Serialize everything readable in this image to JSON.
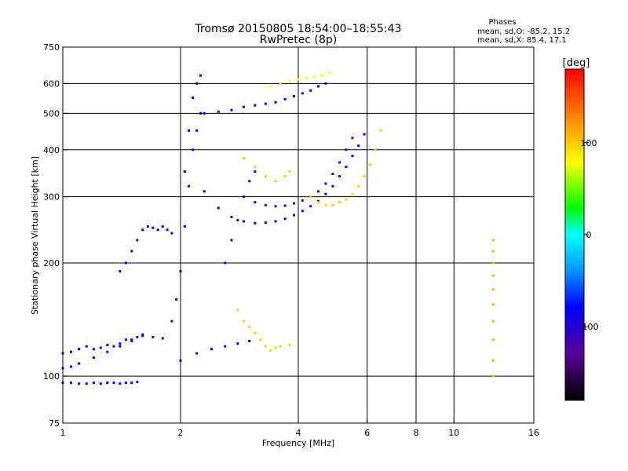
{
  "chart_data": {
    "type": "scatter",
    "title": "Tromsø 20150805 18:54:00–18:55:43",
    "subtitle": "RwPretec (8p)",
    "xlabel": "Frequency [MHz]",
    "ylabel": "Stationary phase Virtual Height [km]",
    "x_scale": "log",
    "y_scale": "log",
    "xlim": [
      1,
      16
    ],
    "ylim": [
      75,
      750
    ],
    "x_ticks": [
      1,
      2,
      4,
      6,
      8,
      10,
      16
    ],
    "x_gridlines": [
      2,
      4,
      6,
      8,
      10
    ],
    "y_ticks": [
      75,
      100,
      200,
      300,
      400,
      500,
      600,
      750
    ],
    "y_gridlines": [
      100,
      200,
      300,
      400,
      500,
      600
    ],
    "grid": true,
    "stats": {
      "heading": "Phases",
      "line_o": "mean, sd,O: -85.2, 15.2",
      "line_x": "mean, sd,X:  85.4, 17.1"
    },
    "colorbar": {
      "label": "[deg]",
      "ticks": [
        100,
        0,
        -100
      ],
      "range": [
        -180,
        180
      ],
      "placement": "right"
    },
    "traces": [
      {
        "phase": -100,
        "points": [
          [
            1.0,
            115
          ],
          [
            1.05,
            116
          ],
          [
            1.1,
            118
          ],
          [
            1.15,
            120
          ],
          [
            1.2,
            118
          ],
          [
            1.25,
            119
          ],
          [
            1.3,
            121
          ],
          [
            1.35,
            120
          ],
          [
            1.4,
            122
          ],
          [
            1.45,
            125
          ],
          [
            1.5,
            124
          ],
          [
            1.55,
            127
          ],
          [
            1.6,
            129
          ]
        ]
      },
      {
        "phase": -100,
        "points": [
          [
            1.0,
            96
          ],
          [
            1.05,
            96
          ],
          [
            1.1,
            95.5
          ],
          [
            1.15,
            95.5
          ],
          [
            1.2,
            96
          ],
          [
            1.25,
            95.5
          ],
          [
            1.3,
            96
          ],
          [
            1.35,
            96
          ],
          [
            1.4,
            95.5
          ],
          [
            1.45,
            96
          ],
          [
            1.5,
            96
          ],
          [
            1.55,
            96.5
          ]
        ]
      },
      {
        "phase": -100,
        "points": [
          [
            1.0,
            105
          ],
          [
            1.05,
            106
          ],
          [
            1.1,
            108
          ],
          [
            1.2,
            112
          ],
          [
            1.3,
            116
          ],
          [
            1.4,
            120
          ],
          [
            1.5,
            125
          ],
          [
            1.6,
            128
          ],
          [
            1.7,
            127
          ],
          [
            1.8,
            126
          ]
        ]
      },
      {
        "phase": -100,
        "points": [
          [
            1.4,
            190
          ],
          [
            1.45,
            200
          ],
          [
            1.5,
            215
          ],
          [
            1.55,
            230
          ],
          [
            1.6,
            245
          ],
          [
            1.65,
            250
          ],
          [
            1.7,
            248
          ],
          [
            1.75,
            245
          ],
          [
            1.8,
            250
          ],
          [
            1.85,
            245
          ],
          [
            1.9,
            240
          ]
        ]
      },
      {
        "phase": -100,
        "points": [
          [
            1.9,
            140
          ],
          [
            1.95,
            160
          ],
          [
            2.0,
            190
          ],
          [
            2.05,
            250
          ],
          [
            2.1,
            320
          ],
          [
            2.15,
            400
          ],
          [
            2.2,
            450
          ],
          [
            2.25,
            500
          ]
        ]
      },
      {
        "phase": -100,
        "points": [
          [
            2.05,
            350
          ],
          [
            2.1,
            450
          ],
          [
            2.15,
            550
          ],
          [
            2.2,
            600
          ],
          [
            2.25,
            630
          ]
        ]
      },
      {
        "phase": -100,
        "points": [
          [
            2.3,
            500
          ],
          [
            2.5,
            505
          ],
          [
            2.7,
            510
          ],
          [
            2.9,
            520
          ],
          [
            3.1,
            525
          ],
          [
            3.3,
            530
          ],
          [
            3.5,
            535
          ],
          [
            3.7,
            545
          ],
          [
            3.9,
            555
          ],
          [
            4.1,
            565
          ],
          [
            4.3,
            575
          ],
          [
            4.5,
            590
          ],
          [
            4.7,
            600
          ]
        ]
      },
      {
        "phase": -100,
        "points": [
          [
            2.3,
            310
          ],
          [
            2.5,
            280
          ],
          [
            2.7,
            265
          ],
          [
            2.9,
            258
          ],
          [
            3.1,
            255
          ],
          [
            3.3,
            256
          ],
          [
            3.5,
            258
          ],
          [
            3.7,
            262
          ],
          [
            3.9,
            268
          ],
          [
            4.1,
            275
          ],
          [
            4.3,
            283
          ],
          [
            4.5,
            292
          ],
          [
            4.7,
            305
          ],
          [
            4.9,
            320
          ],
          [
            5.1,
            340
          ],
          [
            5.3,
            360
          ],
          [
            5.5,
            385
          ],
          [
            5.7,
            410
          ],
          [
            5.9,
            440
          ]
        ]
      },
      {
        "phase": -120,
        "points": [
          [
            2.9,
            300
          ],
          [
            3.1,
            290
          ],
          [
            3.3,
            285
          ],
          [
            3.5,
            283
          ],
          [
            3.7,
            284
          ],
          [
            3.9,
            288
          ],
          [
            4.1,
            293
          ],
          [
            4.3,
            300
          ],
          [
            4.5,
            310
          ],
          [
            4.7,
            325
          ],
          [
            4.9,
            345
          ],
          [
            5.1,
            370
          ],
          [
            5.3,
            400
          ],
          [
            5.5,
            430
          ]
        ]
      },
      {
        "phase": -100,
        "points": [
          [
            2.6,
            200
          ],
          [
            2.7,
            230
          ],
          [
            2.8,
            260
          ],
          [
            2.9,
            300
          ],
          [
            3.0,
            330
          ],
          [
            3.1,
            350
          ]
        ]
      },
      {
        "phase": -100,
        "points": [
          [
            2.0,
            110
          ],
          [
            2.2,
            115
          ],
          [
            2.4,
            118
          ],
          [
            2.6,
            120
          ],
          [
            2.8,
            122
          ],
          [
            3.0,
            124
          ]
        ]
      },
      {
        "phase": 100,
        "points": [
          [
            2.9,
            380
          ],
          [
            3.1,
            360
          ],
          [
            3.3,
            340
          ],
          [
            3.5,
            330
          ],
          [
            3.7,
            340
          ],
          [
            3.8,
            350
          ]
        ]
      },
      {
        "phase": 100,
        "points": [
          [
            4.3,
            300
          ],
          [
            4.5,
            290
          ],
          [
            4.7,
            285
          ],
          [
            4.9,
            285
          ],
          [
            5.1,
            290
          ],
          [
            5.3,
            295
          ],
          [
            5.5,
            305
          ],
          [
            5.7,
            320
          ],
          [
            5.9,
            340
          ],
          [
            6.1,
            365
          ],
          [
            6.3,
            400
          ],
          [
            6.5,
            450
          ]
        ]
      },
      {
        "phase": 100,
        "points": [
          [
            2.8,
            150
          ],
          [
            2.9,
            140
          ],
          [
            3.0,
            135
          ],
          [
            3.1,
            130
          ],
          [
            3.2,
            125
          ],
          [
            3.3,
            120
          ],
          [
            3.4,
            117
          ],
          [
            3.5,
            119
          ],
          [
            3.6,
            120
          ],
          [
            3.8,
            121
          ]
        ]
      },
      {
        "phase": 110,
        "points": [
          [
            12.6,
            100
          ],
          [
            12.6,
            110
          ],
          [
            12.6,
            125
          ],
          [
            12.6,
            140
          ],
          [
            12.6,
            155
          ],
          [
            12.6,
            170
          ],
          [
            12.6,
            185
          ],
          [
            12.6,
            200
          ],
          [
            12.6,
            215
          ],
          [
            12.6,
            230
          ]
        ]
      },
      {
        "phase": 80,
        "points": [
          [
            3.4,
            590
          ],
          [
            3.6,
            600
          ],
          [
            3.8,
            610
          ],
          [
            4.0,
            615
          ],
          [
            4.2,
            620
          ],
          [
            4.4,
            625
          ],
          [
            4.6,
            630
          ],
          [
            4.8,
            640
          ]
        ]
      }
    ]
  }
}
